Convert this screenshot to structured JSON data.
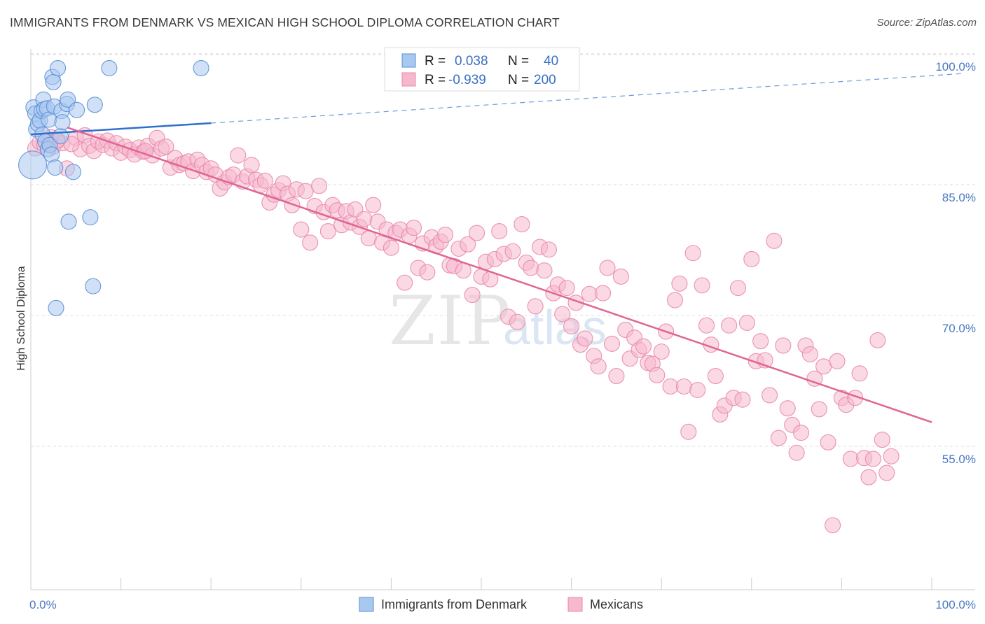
{
  "header": {
    "title": "IMMIGRANTS FROM DENMARK VS MEXICAN HIGH SCHOOL DIPLOMA CORRELATION CHART",
    "source": "Source: ZipAtlas.com"
  },
  "watermark": {
    "zip": "ZIP",
    "atlas": "atlas"
  },
  "colors": {
    "blue_fill": "#a9c8f0",
    "blue_stroke": "#5b8fd6",
    "blue_line": "#2f6fcf",
    "pink_fill": "#f6b8cd",
    "pink_stroke": "#e98aa9",
    "pink_line": "#e06593",
    "tick_text": "#4a78c2",
    "grid": "#dddddd"
  },
  "legend": {
    "rows": [
      {
        "r_label": "R =",
        "r_value": "0.038",
        "n_label": "N =",
        "n_value": "40"
      },
      {
        "r_label": "R =",
        "r_value": "-0.939",
        "n_label": "N =",
        "n_value": "200"
      }
    ]
  },
  "chart_data": {
    "type": "scatter",
    "ylabel": "High School Diploma",
    "xlim": [
      0,
      100
    ],
    "ylim": [
      40,
      102
    ],
    "x_ticks": [
      {
        "value": 0,
        "label": "0.0%"
      },
      {
        "value": 100,
        "label": "100.0%"
      }
    ],
    "y_ticks": [
      {
        "value": 100,
        "label": "100.0%"
      },
      {
        "value": 85,
        "label": "85.0%"
      },
      {
        "value": 70,
        "label": "70.0%"
      },
      {
        "value": 55,
        "label": "55.0%"
      }
    ],
    "grid": true,
    "legend_position": "top-center",
    "series": [
      {
        "name": "Immigrants from Denmark",
        "color": "#a9c8f0",
        "trend": {
          "x0": 0,
          "y0": 92.2,
          "x1": 20,
          "y1": 93.5,
          "dashed_to_x": 100,
          "dashed_to_y": 99.2
        },
        "points": [
          [
            0.3,
            95.3
          ],
          [
            0.5,
            94.6
          ],
          [
            0.6,
            92.8
          ],
          [
            0.8,
            93.4
          ],
          [
            1.0,
            93.8
          ],
          [
            1.2,
            94.9
          ],
          [
            1.3,
            92.2
          ],
          [
            1.4,
            96.2
          ],
          [
            1.5,
            95.1
          ],
          [
            1.6,
            91.4
          ],
          [
            1.8,
            95.2
          ],
          [
            1.9,
            90.5
          ],
          [
            2.0,
            93.9
          ],
          [
            2.1,
            91.0
          ],
          [
            2.3,
            89.9
          ],
          [
            2.4,
            98.8
          ],
          [
            2.5,
            98.2
          ],
          [
            2.6,
            95.4
          ],
          [
            2.7,
            88.4
          ],
          [
            2.8,
            72.3
          ],
          [
            3.0,
            99.8
          ],
          [
            3.3,
            92.0
          ],
          [
            3.4,
            94.9
          ],
          [
            3.5,
            93.6
          ],
          [
            4.0,
            95.7
          ],
          [
            4.1,
            96.2
          ],
          [
            4.2,
            82.2
          ],
          [
            4.7,
            87.9
          ],
          [
            5.1,
            95.0
          ],
          [
            7.1,
            95.6
          ],
          [
            6.6,
            82.7
          ],
          [
            6.9,
            74.8
          ],
          [
            8.7,
            99.8
          ],
          [
            18.9,
            99.8
          ],
          [
            0.2,
            88.7
          ]
        ],
        "sizes": [
          11,
          11,
          11,
          11,
          11,
          11,
          11,
          11,
          11,
          11,
          11,
          11,
          11,
          11,
          11,
          11,
          11,
          11,
          11,
          11,
          11,
          11,
          11,
          11,
          11,
          11,
          11,
          11,
          11,
          11,
          11,
          11,
          11,
          11,
          20
        ]
      },
      {
        "name": "Mexicans",
        "color": "#f6b8cd",
        "trend": {
          "x0": 0,
          "y0": 94.8,
          "x1": 100,
          "y1": 59.2
        },
        "points": [
          [
            0.5,
            90.6
          ],
          [
            1.0,
            91.3
          ],
          [
            1.5,
            91.0
          ],
          [
            2.0,
            91.6
          ],
          [
            2.5,
            90.8
          ],
          [
            3.0,
            91.5
          ],
          [
            3.5,
            91.2
          ],
          [
            4.0,
            88.3
          ],
          [
            5.0,
            91.8
          ],
          [
            5.5,
            90.5
          ],
          [
            6.0,
            92.1
          ],
          [
            6.5,
            90.9
          ],
          [
            7.0,
            90.3
          ],
          [
            7.5,
            91.4
          ],
          [
            8.0,
            91.0
          ],
          [
            8.5,
            91.5
          ],
          [
            9.0,
            90.6
          ],
          [
            9.5,
            91.2
          ],
          [
            10.0,
            90.1
          ],
          [
            10.5,
            90.8
          ],
          [
            11.0,
            90.4
          ],
          [
            11.5,
            89.9
          ],
          [
            12.0,
            90.7
          ],
          [
            12.5,
            90.2
          ],
          [
            13.0,
            90.9
          ],
          [
            13.5,
            89.8
          ],
          [
            14.0,
            91.8
          ],
          [
            14.5,
            90.6
          ],
          [
            15.0,
            90.8
          ],
          [
            15.5,
            88.4
          ],
          [
            16.0,
            89.5
          ],
          [
            16.5,
            88.7
          ],
          [
            17.0,
            88.9
          ],
          [
            17.5,
            89.1
          ],
          [
            18.0,
            88.0
          ],
          [
            18.5,
            89.3
          ],
          [
            19.0,
            88.7
          ],
          [
            19.5,
            87.9
          ],
          [
            20.0,
            88.3
          ],
          [
            20.5,
            87.6
          ],
          [
            21.0,
            86.0
          ],
          [
            21.5,
            86.7
          ],
          [
            22.0,
            87.3
          ],
          [
            22.5,
            87.6
          ],
          [
            23.0,
            89.8
          ],
          [
            23.5,
            86.8
          ],
          [
            24.0,
            87.4
          ],
          [
            24.5,
            88.7
          ],
          [
            25.0,
            87.0
          ],
          [
            25.5,
            86.4
          ],
          [
            26.0,
            86.9
          ],
          [
            26.5,
            84.4
          ],
          [
            27.0,
            85.3
          ],
          [
            27.5,
            85.8
          ],
          [
            28.0,
            86.6
          ],
          [
            28.5,
            85.4
          ],
          [
            29.0,
            84.1
          ],
          [
            29.5,
            85.9
          ],
          [
            30.0,
            81.3
          ],
          [
            30.5,
            85.7
          ],
          [
            31.0,
            79.8
          ],
          [
            31.5,
            84.0
          ],
          [
            32.0,
            86.3
          ],
          [
            32.5,
            83.3
          ],
          [
            33.0,
            81.1
          ],
          [
            33.5,
            84.1
          ],
          [
            34.0,
            83.5
          ],
          [
            34.5,
            81.8
          ],
          [
            35.0,
            83.4
          ],
          [
            35.5,
            82.1
          ],
          [
            36.0,
            83.6
          ],
          [
            36.5,
            81.6
          ],
          [
            37.0,
            82.5
          ],
          [
            37.5,
            80.3
          ],
          [
            38.0,
            84.1
          ],
          [
            38.5,
            82.2
          ],
          [
            39.0,
            79.8
          ],
          [
            39.5,
            81.3
          ],
          [
            40.0,
            79.2
          ],
          [
            40.5,
            80.9
          ],
          [
            41.0,
            81.3
          ],
          [
            41.5,
            75.2
          ],
          [
            42.0,
            80.6
          ],
          [
            42.5,
            81.5
          ],
          [
            43.0,
            76.9
          ],
          [
            43.5,
            79.7
          ],
          [
            44.0,
            76.4
          ],
          [
            44.5,
            80.4
          ],
          [
            45.0,
            79.4
          ],
          [
            45.5,
            79.9
          ],
          [
            46.0,
            80.7
          ],
          [
            46.5,
            77.2
          ],
          [
            47.0,
            77.1
          ],
          [
            47.5,
            79.1
          ],
          [
            48.0,
            76.6
          ],
          [
            48.5,
            79.6
          ],
          [
            49.0,
            73.8
          ],
          [
            49.5,
            80.9
          ],
          [
            50.0,
            75.9
          ],
          [
            50.5,
            77.6
          ],
          [
            51.0,
            75.6
          ],
          [
            51.5,
            77.9
          ],
          [
            52.0,
            81.1
          ],
          [
            52.5,
            78.5
          ],
          [
            53.0,
            71.3
          ],
          [
            53.5,
            78.8
          ],
          [
            54.0,
            70.7
          ],
          [
            54.5,
            81.9
          ],
          [
            55.0,
            77.5
          ],
          [
            55.5,
            76.9
          ],
          [
            56.0,
            72.5
          ],
          [
            56.5,
            79.3
          ],
          [
            57.0,
            76.6
          ],
          [
            57.5,
            79.0
          ],
          [
            58.0,
            74.0
          ],
          [
            58.5,
            75.0
          ],
          [
            59.0,
            71.6
          ],
          [
            59.5,
            74.6
          ],
          [
            60.0,
            70.2
          ],
          [
            60.5,
            72.9
          ],
          [
            61.0,
            68.1
          ],
          [
            61.5,
            68.8
          ],
          [
            62.0,
            73.9
          ],
          [
            62.5,
            66.8
          ],
          [
            63.0,
            65.6
          ],
          [
            63.5,
            74.0
          ],
          [
            64.0,
            76.9
          ],
          [
            64.5,
            68.2
          ],
          [
            65.0,
            64.5
          ],
          [
            65.5,
            75.9
          ],
          [
            66.0,
            69.8
          ],
          [
            66.5,
            66.5
          ],
          [
            67.0,
            68.9
          ],
          [
            67.5,
            67.5
          ],
          [
            68.0,
            67.9
          ],
          [
            68.5,
            66.0
          ],
          [
            69.0,
            65.9
          ],
          [
            69.5,
            64.6
          ],
          [
            70.0,
            67.3
          ],
          [
            70.5,
            69.6
          ],
          [
            71.0,
            63.3
          ],
          [
            71.5,
            73.2
          ],
          [
            72.0,
            75.1
          ],
          [
            72.5,
            63.3
          ],
          [
            73.0,
            58.1
          ],
          [
            73.5,
            78.6
          ],
          [
            74.0,
            62.9
          ],
          [
            74.5,
            74.9
          ],
          [
            75.0,
            70.3
          ],
          [
            75.5,
            68.1
          ],
          [
            76.0,
            64.5
          ],
          [
            76.5,
            60.1
          ],
          [
            77.0,
            61.1
          ],
          [
            77.5,
            70.3
          ],
          [
            78.0,
            62.0
          ],
          [
            78.5,
            74.6
          ],
          [
            79.0,
            61.8
          ],
          [
            79.5,
            70.6
          ],
          [
            80.0,
            77.9
          ],
          [
            80.5,
            66.2
          ],
          [
            81.0,
            68.5
          ],
          [
            81.5,
            66.3
          ],
          [
            82.0,
            62.3
          ],
          [
            82.5,
            80.0
          ],
          [
            83.0,
            57.4
          ],
          [
            83.5,
            68.0
          ],
          [
            84.0,
            60.8
          ],
          [
            84.5,
            58.9
          ],
          [
            85.0,
            55.7
          ],
          [
            85.5,
            58.0
          ],
          [
            86.0,
            68.0
          ],
          [
            86.5,
            67.0
          ],
          [
            87.0,
            64.2
          ],
          [
            87.5,
            60.7
          ],
          [
            88.0,
            65.6
          ],
          [
            88.5,
            56.9
          ],
          [
            89.0,
            47.4
          ],
          [
            89.5,
            66.2
          ],
          [
            90.0,
            62.0
          ],
          [
            90.5,
            61.2
          ],
          [
            91.0,
            55.0
          ],
          [
            91.5,
            62.0
          ],
          [
            92.0,
            64.8
          ],
          [
            92.5,
            55.1
          ],
          [
            93.0,
            52.9
          ],
          [
            93.5,
            55.0
          ],
          [
            94.0,
            68.6
          ],
          [
            94.5,
            57.2
          ],
          [
            95.0,
            53.4
          ],
          [
            95.5,
            55.3
          ],
          [
            2.2,
            91.9
          ],
          [
            4.5,
            91.1
          ],
          [
            12.7,
            90.3
          ],
          [
            2.9,
            91.5
          ]
        ],
        "sizes": [
          11
        ]
      }
    ]
  },
  "bottom_legend": {
    "items": [
      {
        "label": "Immigrants from Denmark"
      },
      {
        "label": "Mexicans"
      }
    ]
  }
}
